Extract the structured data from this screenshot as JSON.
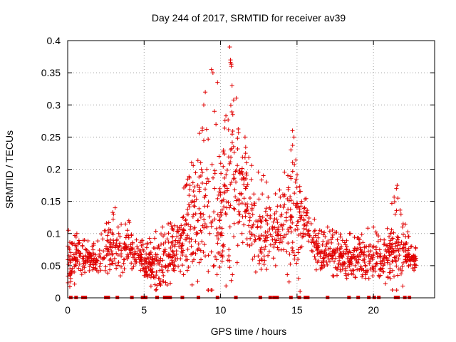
{
  "chart_data": {
    "type": "scatter",
    "title": "Day 244 of 2017, SRMTID for receiver av39",
    "xlabel": "GPS time / hours",
    "ylabel": "SRMTID / TECUs",
    "xlim": [
      0,
      24
    ],
    "ylim": [
      0,
      0.4
    ],
    "xticks": [
      0,
      5,
      10,
      15,
      20
    ],
    "yticks": [
      0,
      0.05,
      0.1,
      0.15,
      0.2,
      0.25,
      0.3,
      0.35,
      0.4
    ],
    "xtick_labels": [
      "0",
      "5",
      "10",
      "15",
      "20"
    ],
    "ytick_labels": [
      "0",
      "0.05",
      "0.1",
      "0.15",
      "0.2",
      "0.25",
      "0.3",
      "0.35",
      "0.4"
    ],
    "grid": true,
    "color": "#e00000",
    "marker": "plus",
    "envelope_note": "approximate per-hour median and upper envelope of the dense cloud",
    "envelope": [
      {
        "x": 0.0,
        "median": 0.045,
        "high": 0.105
      },
      {
        "x": 1.0,
        "median": 0.06,
        "high": 0.09
      },
      {
        "x": 2.0,
        "median": 0.055,
        "high": 0.09
      },
      {
        "x": 3.0,
        "median": 0.07,
        "high": 0.14
      },
      {
        "x": 4.0,
        "median": 0.075,
        "high": 0.12
      },
      {
        "x": 5.0,
        "median": 0.05,
        "high": 0.085
      },
      {
        "x": 6.0,
        "median": 0.045,
        "high": 0.11
      },
      {
        "x": 7.0,
        "median": 0.065,
        "high": 0.12
      },
      {
        "x": 8.0,
        "median": 0.1,
        "high": 0.21
      },
      {
        "x": 9.0,
        "median": 0.12,
        "high": 0.32
      },
      {
        "x": 9.5,
        "median": 0.11,
        "high": 0.35
      },
      {
        "x": 10.0,
        "median": 0.12,
        "high": 0.23
      },
      {
        "x": 10.7,
        "median": 0.14,
        "high": 0.39
      },
      {
        "x": 11.5,
        "median": 0.14,
        "high": 0.245
      },
      {
        "x": 12.5,
        "median": 0.09,
        "high": 0.195
      },
      {
        "x": 13.5,
        "median": 0.1,
        "high": 0.16
      },
      {
        "x": 14.5,
        "median": 0.1,
        "high": 0.26
      },
      {
        "x": 15.5,
        "median": 0.12,
        "high": 0.16
      },
      {
        "x": 16.5,
        "median": 0.06,
        "high": 0.105
      },
      {
        "x": 17.5,
        "median": 0.065,
        "high": 0.11
      },
      {
        "x": 18.5,
        "median": 0.055,
        "high": 0.1
      },
      {
        "x": 19.5,
        "median": 0.06,
        "high": 0.11
      },
      {
        "x": 20.5,
        "median": 0.055,
        "high": 0.1
      },
      {
        "x": 21.5,
        "median": 0.07,
        "high": 0.17
      },
      {
        "x": 22.5,
        "median": 0.055,
        "high": 0.08
      }
    ],
    "zero_markers_x": [
      0.2,
      0.55,
      1.0,
      1.15,
      2.5,
      2.65,
      3.25,
      4.2,
      4.9,
      5.1,
      5.85,
      6.35,
      6.5,
      6.7,
      7.5,
      8.55,
      9.8,
      11.0,
      12.6,
      13.25,
      13.5,
      13.7,
      14.6,
      15.15,
      15.55,
      15.7,
      17.0,
      18.4,
      19.0,
      19.7,
      20.05,
      20.35,
      21.45,
      21.6,
      22.05,
      22.35
    ],
    "points": [
      {
        "x": 0.05,
        "y": 0.105
      },
      {
        "x": 0.1,
        "y": 0.06
      },
      {
        "x": 0.15,
        "y": 0.035
      },
      {
        "x": 0.15,
        "y": 0.045
      },
      {
        "x": 0.2,
        "y": 0.03
      },
      {
        "x": 0.25,
        "y": 0.04
      },
      {
        "x": 0.3,
        "y": 0.085
      },
      {
        "x": 0.5,
        "y": 0.07
      },
      {
        "x": 0.6,
        "y": 0.1
      },
      {
        "x": 0.7,
        "y": 0.085
      },
      {
        "x": 1.3,
        "y": 0.07
      },
      {
        "x": 1.5,
        "y": 0.065
      },
      {
        "x": 1.6,
        "y": 0.08
      },
      {
        "x": 1.8,
        "y": 0.055
      },
      {
        "x": 2.0,
        "y": 0.04
      },
      {
        "x": 2.3,
        "y": 0.06
      },
      {
        "x": 2.6,
        "y": 0.075
      },
      {
        "x": 2.8,
        "y": 0.09
      },
      {
        "x": 3.0,
        "y": 0.13
      },
      {
        "x": 3.1,
        "y": 0.14
      },
      {
        "x": 3.3,
        "y": 0.11
      },
      {
        "x": 3.5,
        "y": 0.065
      },
      {
        "x": 3.7,
        "y": 0.085
      },
      {
        "x": 3.9,
        "y": 0.105
      },
      {
        "x": 4.0,
        "y": 0.12
      },
      {
        "x": 4.2,
        "y": 0.045
      },
      {
        "x": 4.5,
        "y": 0.09
      },
      {
        "x": 4.8,
        "y": 0.06
      },
      {
        "x": 5.0,
        "y": 0.045
      },
      {
        "x": 5.2,
        "y": 0.085
      },
      {
        "x": 5.5,
        "y": 0.055
      },
      {
        "x": 5.8,
        "y": 0.04
      },
      {
        "x": 6.0,
        "y": 0.03
      },
      {
        "x": 6.2,
        "y": 0.11
      },
      {
        "x": 6.4,
        "y": 0.05
      },
      {
        "x": 6.5,
        "y": 0.02
      },
      {
        "x": 6.7,
        "y": 0.065
      },
      {
        "x": 7.0,
        "y": 0.08
      },
      {
        "x": 7.2,
        "y": 0.11
      },
      {
        "x": 7.5,
        "y": 0.07
      },
      {
        "x": 7.8,
        "y": 0.13
      },
      {
        "x": 8.0,
        "y": 0.175
      },
      {
        "x": 8.1,
        "y": 0.21
      },
      {
        "x": 8.3,
        "y": 0.15
      },
      {
        "x": 8.5,
        "y": 0.12
      },
      {
        "x": 8.7,
        "y": 0.21
      },
      {
        "x": 8.8,
        "y": 0.26
      },
      {
        "x": 8.9,
        "y": 0.3
      },
      {
        "x": 9.0,
        "y": 0.32
      },
      {
        "x": 9.1,
        "y": 0.2
      },
      {
        "x": 9.3,
        "y": 0.1
      },
      {
        "x": 9.4,
        "y": 0.355
      },
      {
        "x": 9.5,
        "y": 0.35
      },
      {
        "x": 9.6,
        "y": 0.29
      },
      {
        "x": 9.7,
        "y": 0.27
      },
      {
        "x": 9.8,
        "y": 0.335
      },
      {
        "x": 9.9,
        "y": 0.22
      },
      {
        "x": 10.0,
        "y": 0.16
      },
      {
        "x": 10.2,
        "y": 0.08
      },
      {
        "x": 10.4,
        "y": 0.14
      },
      {
        "x": 10.6,
        "y": 0.39
      },
      {
        "x": 10.65,
        "y": 0.37
      },
      {
        "x": 10.7,
        "y": 0.36
      },
      {
        "x": 10.75,
        "y": 0.33
      },
      {
        "x": 10.8,
        "y": 0.285
      },
      {
        "x": 10.85,
        "y": 0.235
      },
      {
        "x": 11.0,
        "y": 0.18
      },
      {
        "x": 11.2,
        "y": 0.13
      },
      {
        "x": 11.4,
        "y": 0.1
      },
      {
        "x": 11.6,
        "y": 0.25
      },
      {
        "x": 11.7,
        "y": 0.21
      },
      {
        "x": 11.9,
        "y": 0.12
      },
      {
        "x": 12.1,
        "y": 0.06
      },
      {
        "x": 12.3,
        "y": 0.04
      },
      {
        "x": 12.6,
        "y": 0.12
      },
      {
        "x": 12.8,
        "y": 0.19
      },
      {
        "x": 13.0,
        "y": 0.18
      },
      {
        "x": 13.2,
        "y": 0.14
      },
      {
        "x": 13.4,
        "y": 0.09
      },
      {
        "x": 13.6,
        "y": 0.05
      },
      {
        "x": 13.8,
        "y": 0.11
      },
      {
        "x": 14.0,
        "y": 0.13
      },
      {
        "x": 14.2,
        "y": 0.16
      },
      {
        "x": 14.4,
        "y": 0.19
      },
      {
        "x": 14.6,
        "y": 0.23
      },
      {
        "x": 14.7,
        "y": 0.26
      },
      {
        "x": 14.8,
        "y": 0.25
      },
      {
        "x": 14.9,
        "y": 0.18
      },
      {
        "x": 15.0,
        "y": 0.14
      },
      {
        "x": 15.1,
        "y": 0.03
      },
      {
        "x": 15.2,
        "y": 0.01
      },
      {
        "x": 15.3,
        "y": 0.15
      },
      {
        "x": 15.5,
        "y": 0.14
      },
      {
        "x": 15.7,
        "y": 0.1
      },
      {
        "x": 16.0,
        "y": 0.09
      },
      {
        "x": 16.2,
        "y": 0.06
      },
      {
        "x": 16.4,
        "y": 0.1
      },
      {
        "x": 16.6,
        "y": 0.05
      },
      {
        "x": 16.8,
        "y": 0.07
      },
      {
        "x": 17.0,
        "y": 0.11
      },
      {
        "x": 17.3,
        "y": 0.065
      },
      {
        "x": 17.6,
        "y": 0.045
      },
      {
        "x": 17.9,
        "y": 0.08
      },
      {
        "x": 18.2,
        "y": 0.035
      },
      {
        "x": 18.5,
        "y": 0.1
      },
      {
        "x": 18.8,
        "y": 0.05
      },
      {
        "x": 19.1,
        "y": 0.085
      },
      {
        "x": 19.4,
        "y": 0.06
      },
      {
        "x": 19.7,
        "y": 0.03
      },
      {
        "x": 20.0,
        "y": 0.11
      },
      {
        "x": 20.2,
        "y": 0.07
      },
      {
        "x": 20.5,
        "y": 0.045
      },
      {
        "x": 20.7,
        "y": 0.09
      },
      {
        "x": 20.9,
        "y": 0.055
      },
      {
        "x": 21.1,
        "y": 0.03
      },
      {
        "x": 21.3,
        "y": 0.07
      },
      {
        "x": 21.5,
        "y": 0.17
      },
      {
        "x": 21.55,
        "y": 0.175
      },
      {
        "x": 21.6,
        "y": 0.155
      },
      {
        "x": 21.8,
        "y": 0.13
      },
      {
        "x": 21.9,
        "y": 0.11
      },
      {
        "x": 22.1,
        "y": 0.065
      },
      {
        "x": 22.3,
        "y": 0.05
      },
      {
        "x": 22.5,
        "y": 0.08
      },
      {
        "x": 22.7,
        "y": 0.06
      }
    ]
  }
}
